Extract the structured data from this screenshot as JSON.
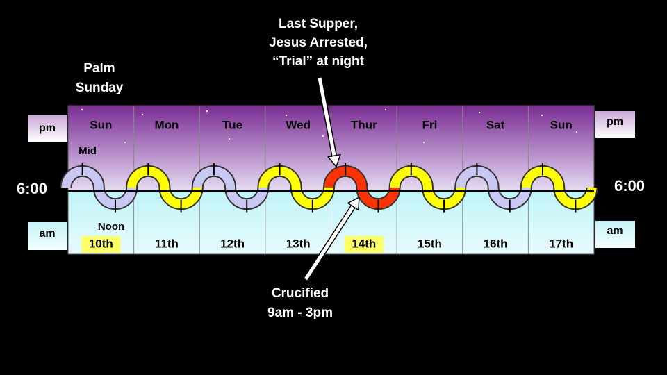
{
  "labels": {
    "palm_sunday": [
      "Palm",
      "Sunday"
    ],
    "mid": "Mid",
    "noon": "Noon",
    "pm": "pm",
    "am": "am",
    "six": "6:00"
  },
  "annotations": {
    "top": [
      "Last Supper,",
      "Jesus Arrested,",
      "“Trial” at night"
    ],
    "bottom": [
      "Crucified",
      "9am - 3pm"
    ]
  },
  "days": [
    {
      "day": "Sun",
      "date": "10th",
      "color": "#c8c8f2",
      "highlight": true
    },
    {
      "day": "Mon",
      "date": "11th",
      "color": "#ffff00"
    },
    {
      "day": "Tue",
      "date": "12th",
      "color": "#c8c8f2"
    },
    {
      "day": "Wed",
      "date": "13th",
      "color": "#ffff00"
    },
    {
      "day": "Thur",
      "date": "14th",
      "color": "#ff3300",
      "highlight": true
    },
    {
      "day": "Fri",
      "date": "15th",
      "color": "#ffff00"
    },
    {
      "day": "Sat",
      "date": "16th",
      "color": "#c8c8f2"
    },
    {
      "day": "Sun",
      "date": "17th",
      "color": "#ffff00"
    }
  ]
}
